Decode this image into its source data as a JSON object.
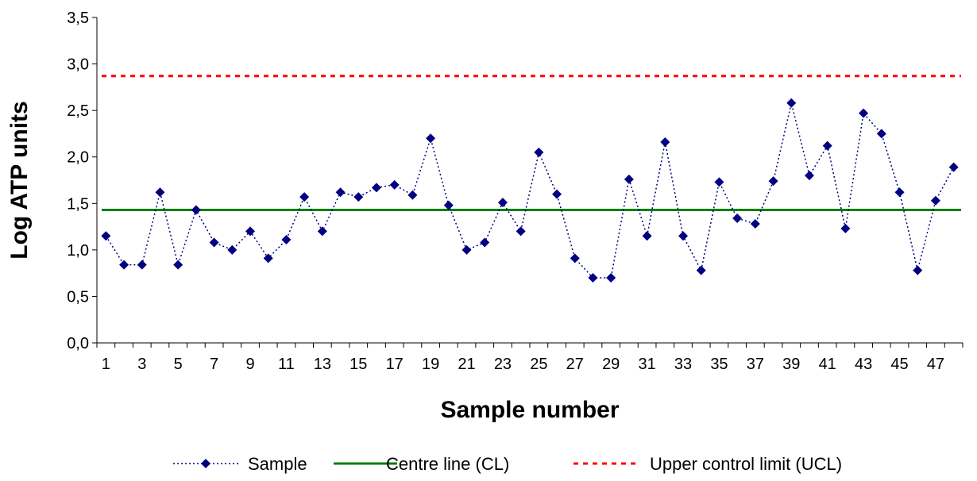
{
  "chart_data": {
    "type": "line",
    "title": "",
    "xlabel": "Sample number",
    "ylabel": "Log ATP units",
    "ylim": [
      0,
      3.5
    ],
    "y_ticks": [
      "0,0",
      "0,5",
      "1,0",
      "1,5",
      "2,0",
      "2,5",
      "3,0",
      "3,5"
    ],
    "x_tick_labels": [
      "1",
      "3",
      "5",
      "7",
      "9",
      "11",
      "13",
      "15",
      "17",
      "19",
      "21",
      "23",
      "25",
      "27",
      "29",
      "31",
      "33",
      "35",
      "37",
      "39",
      "41",
      "43",
      "45",
      "47"
    ],
    "grid": false,
    "legend_position": "bottom",
    "x": [
      1,
      2,
      3,
      4,
      5,
      6,
      7,
      8,
      9,
      10,
      11,
      12,
      13,
      14,
      15,
      16,
      17,
      18,
      19,
      20,
      21,
      22,
      23,
      24,
      25,
      26,
      27,
      28,
      29,
      30,
      31,
      32,
      33,
      34,
      35,
      36,
      37,
      38,
      39,
      40,
      41,
      42,
      43,
      44,
      45,
      46,
      47,
      48
    ],
    "series": [
      {
        "name": "Sample",
        "color": "#000080",
        "style": "dotted-line-diamond-markers",
        "values": [
          1.15,
          0.84,
          0.84,
          1.62,
          0.84,
          1.43,
          1.08,
          1.0,
          1.2,
          0.91,
          1.11,
          1.57,
          1.2,
          1.62,
          1.57,
          1.67,
          1.7,
          1.59,
          2.2,
          1.48,
          1.0,
          1.08,
          1.51,
          1.2,
          2.05,
          1.6,
          0.91,
          0.7,
          0.7,
          1.76,
          1.15,
          2.16,
          1.15,
          0.78,
          1.73,
          1.34,
          1.28,
          1.74,
          2.58,
          1.8,
          2.12,
          1.23,
          2.47,
          2.25,
          1.62,
          0.78,
          1.53,
          1.89
        ]
      },
      {
        "name": "Centre line (CL)",
        "color": "#008000",
        "style": "solid",
        "constant": 1.43
      },
      {
        "name": "Upper control limit (UCL)",
        "color": "#ff0000",
        "style": "dashed",
        "constant": 2.87
      }
    ]
  }
}
